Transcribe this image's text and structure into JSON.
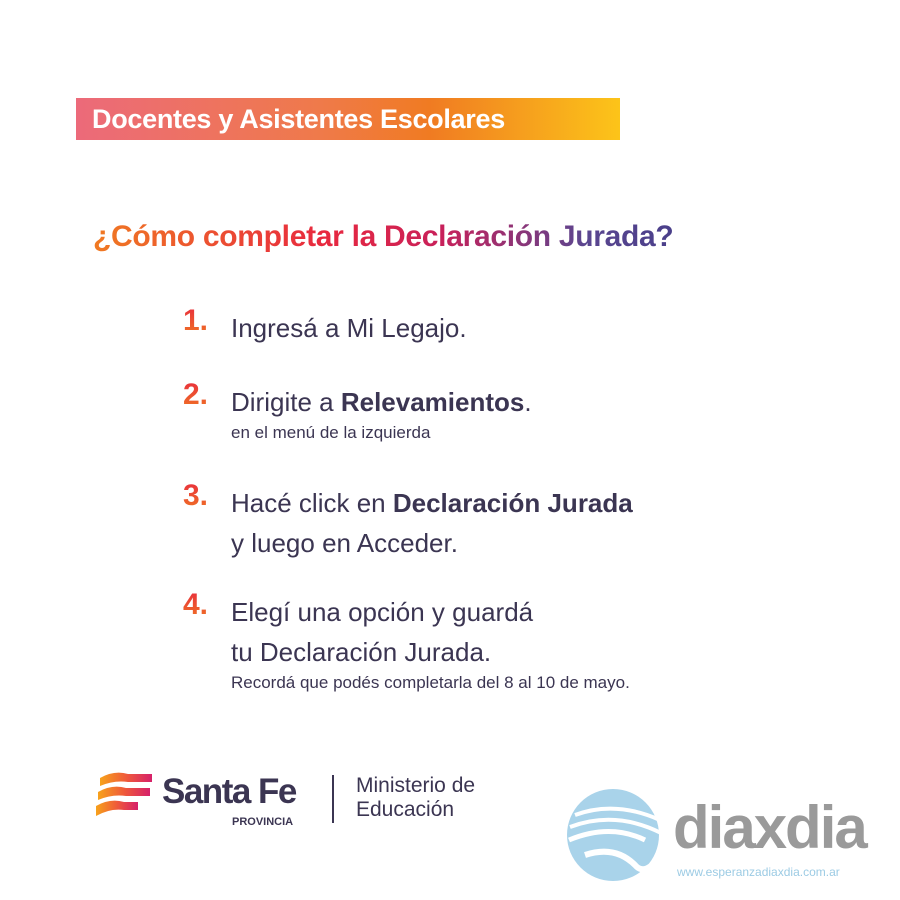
{
  "banner": {
    "text": "Docentes y Asistentes Escolares"
  },
  "title": "¿Cómo completar la Declaración Jurada?",
  "steps": [
    {
      "number": "1.",
      "line1_pre": "Ingresá a Mi Legajo.",
      "line1_bold": "",
      "line1_post": ""
    },
    {
      "number": "2.",
      "line1_pre": "Dirigite a ",
      "line1_bold": "Relevamientos",
      "line1_post": ".",
      "sub": "en el menú de la izquierda"
    },
    {
      "number": "3.",
      "line1_pre": "Hacé click en ",
      "line1_bold": "Declaración Jurada",
      "line1_post": "",
      "line2": "y luego en Acceder."
    },
    {
      "number": "4.",
      "line1_pre": "Elegí una opción y guardá",
      "line1_bold": "",
      "line1_post": "",
      "line2": "tu Declaración Jurada.",
      "sub": "Recordá que podés completarla del 8 al 10 de mayo."
    }
  ],
  "footer": {
    "santafe": {
      "name": "Santa Fe",
      "provincia": "PROVINCIA",
      "ministerio_line1": "Ministerio de",
      "ministerio_line2": "Educación"
    },
    "diaxdia": {
      "name": "diaxdia",
      "url": "www.esperanzadiaxdia.com.ar"
    }
  }
}
